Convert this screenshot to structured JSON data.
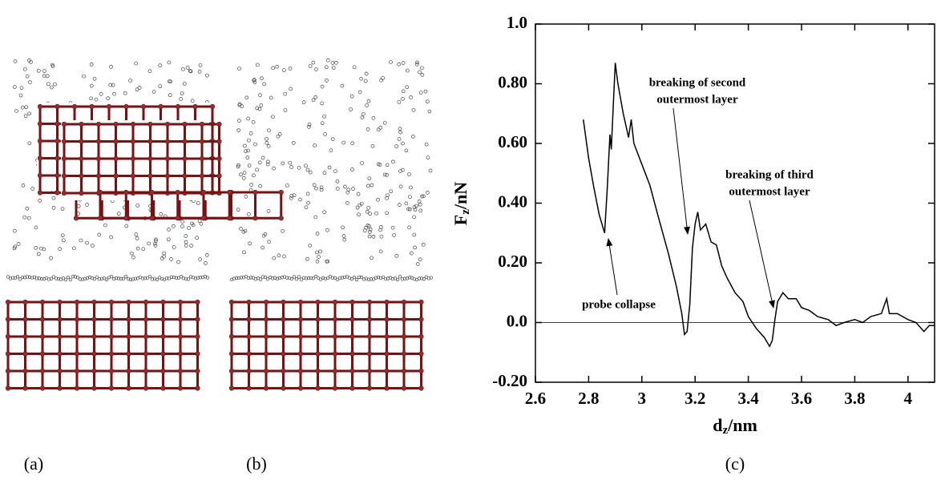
{
  "chart_data": {
    "type": "line",
    "x_label": {
      "main": "d",
      "sub": "z",
      "unit": "/nm"
    },
    "y_label": {
      "main": "F",
      "sub": "z",
      "unit": "/nN"
    },
    "annotations": [
      {
        "lines": [
          "breaking of second",
          "outermost layer"
        ]
      },
      {
        "lines": [
          "breaking of third",
          "outermost layer"
        ]
      },
      {
        "lines": [
          "probe collapse"
        ]
      }
    ],
    "panel_labels": [
      "(a)",
      "(b)",
      "(c)"
    ],
    "xlim": [
      2.6,
      4.1
    ],
    "ylim": [
      -0.2,
      1.0
    ],
    "xticks": [
      2.6,
      2.8,
      3,
      3.2,
      3.4,
      3.6,
      3.8,
      4
    ],
    "yticks": [
      {
        "value": -0.2,
        "label": "-0.20"
      },
      {
        "value": 0,
        "label": "0.0"
      },
      {
        "value": 0.2,
        "label": "0.20"
      },
      {
        "value": 0.4,
        "label": "0.40"
      },
      {
        "value": 0.6,
        "label": "0.60"
      },
      {
        "value": 0.8,
        "label": "0.80"
      },
      {
        "value": 1.0,
        "label": "1.0"
      }
    ],
    "color": "#000000",
    "x": [
      2.78,
      2.8,
      2.82,
      2.84,
      2.86,
      2.87,
      2.88,
      2.885,
      2.9,
      2.91,
      2.93,
      2.95,
      2.96,
      2.97,
      3.0,
      3.03,
      3.06,
      3.1,
      3.13,
      3.15,
      3.16,
      3.17,
      3.18,
      3.19,
      3.2,
      3.21,
      3.22,
      3.24,
      3.26,
      3.28,
      3.3,
      3.32,
      3.35,
      3.38,
      3.4,
      3.43,
      3.46,
      3.48,
      3.49,
      3.5,
      3.51,
      3.53,
      3.55,
      3.58,
      3.6,
      3.63,
      3.66,
      3.7,
      3.73,
      3.76,
      3.8,
      3.83,
      3.86,
      3.9,
      3.92,
      3.93,
      3.96,
      4.0,
      4.03,
      4.06,
      4.08,
      4.1
    ],
    "values": [
      0.68,
      0.55,
      0.45,
      0.36,
      0.3,
      0.45,
      0.63,
      0.58,
      0.87,
      0.8,
      0.7,
      0.62,
      0.68,
      0.6,
      0.53,
      0.46,
      0.36,
      0.23,
      0.12,
      0.03,
      -0.04,
      -0.03,
      0.06,
      0.25,
      0.33,
      0.37,
      0.31,
      0.33,
      0.27,
      0.26,
      0.19,
      0.15,
      0.1,
      0.07,
      0.02,
      -0.02,
      -0.05,
      -0.08,
      -0.06,
      0.01,
      0.07,
      0.1,
      0.08,
      0.08,
      0.05,
      0.04,
      0.02,
      0.01,
      -0.01,
      0.0,
      0.01,
      0.0,
      0.02,
      0.03,
      0.08,
      0.03,
      0.03,
      0.01,
      0.0,
      -0.03,
      -0.01,
      -0.01
    ]
  }
}
